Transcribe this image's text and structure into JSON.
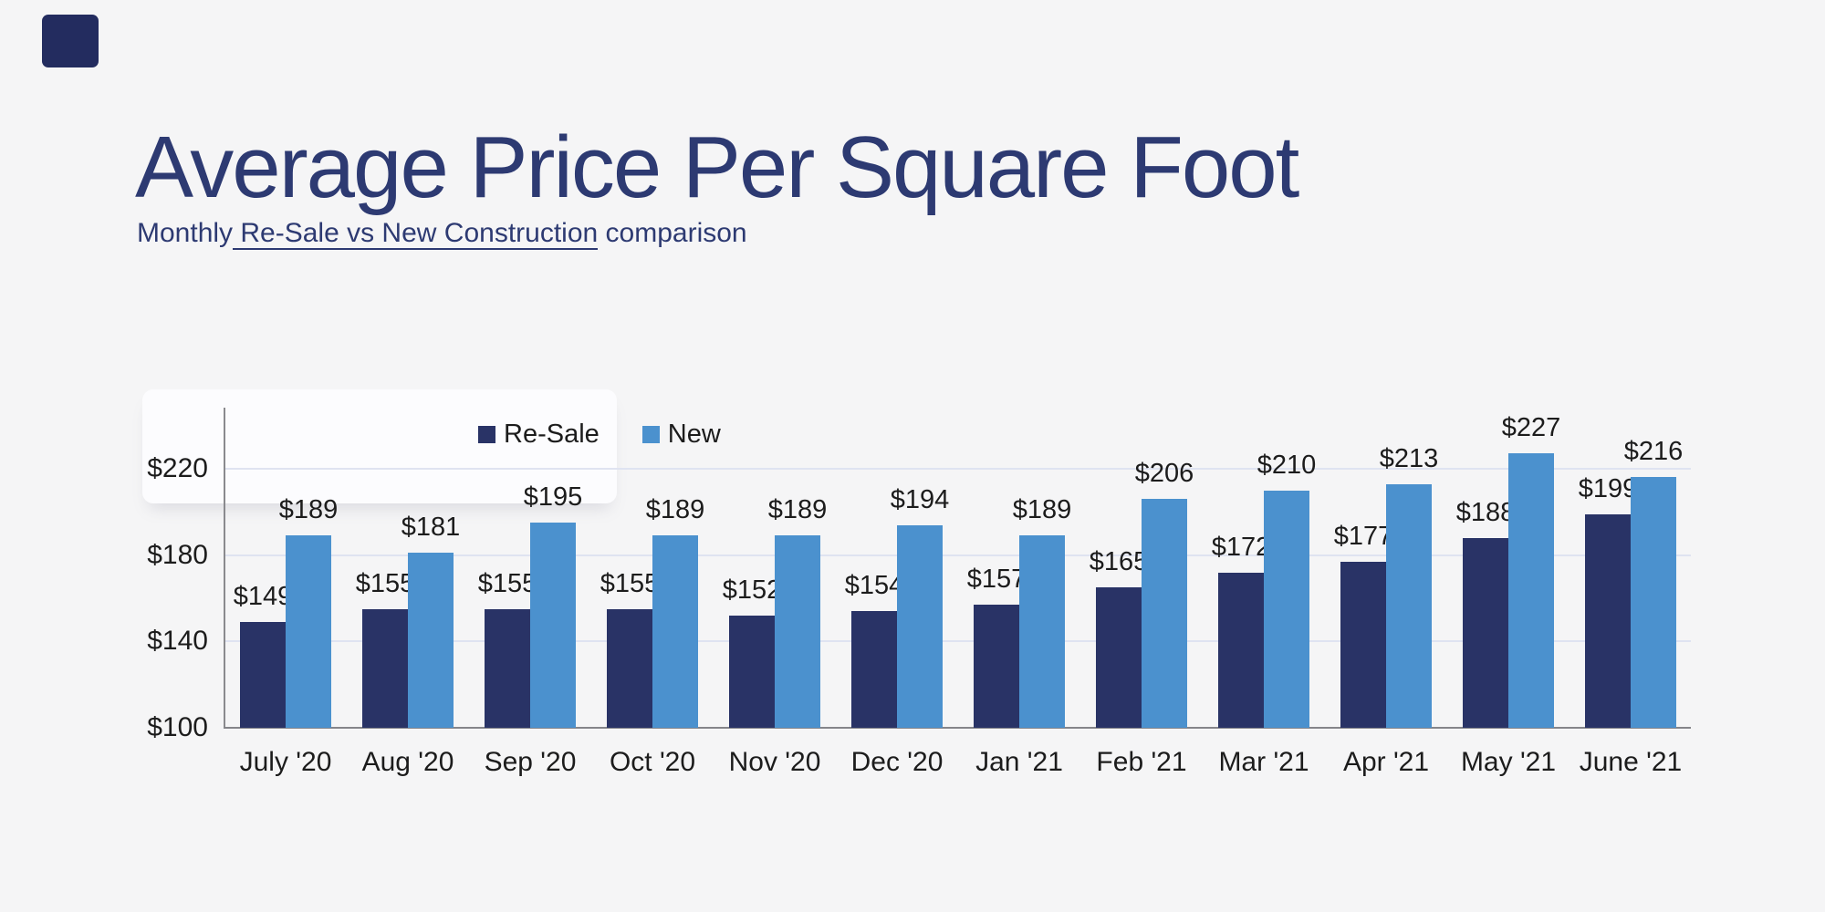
{
  "page": {
    "background": "#f5f5f6",
    "logo_color": "#232c5f",
    "heading_color": "#2d3a72",
    "label_text_color": "#1c1c1c",
    "gridline_color": "#dfe3f1",
    "axis_line_color": "#8a8a8e"
  },
  "header": {
    "title": "Average Price Per Square Foot",
    "subtitle_prefix": "Monthly",
    "subtitle_underlined": " Re-Sale vs New Construction",
    "subtitle_suffix": " comparison"
  },
  "chart_data": {
    "type": "bar",
    "title": "Average Price Per Square Foot",
    "subtitle": "Monthly Re-Sale vs New Construction comparison",
    "categories": [
      "July '20",
      "Aug '20",
      "Sep '20",
      "Oct '20",
      "Nov '20",
      "Dec '20",
      "Jan '21",
      "Feb '21",
      "Mar '21",
      "Apr '21",
      "May '21",
      "June '21"
    ],
    "series": [
      {
        "name": "Re-Sale",
        "color": "#293366",
        "values": [
          149,
          155,
          155,
          155,
          152,
          154,
          157,
          165,
          172,
          177,
          188,
          199
        ]
      },
      {
        "name": "New",
        "color": "#4B91CE",
        "values": [
          189,
          181,
          195,
          189,
          189,
          194,
          189,
          206,
          210,
          213,
          227,
          216
        ]
      }
    ],
    "value_prefix": "$",
    "xlabel": "",
    "ylabel": "",
    "y_ticks": [
      {
        "label": "$220",
        "value": 220
      },
      {
        "label": "$180",
        "value": 180
      },
      {
        "label": "$140",
        "value": 140
      },
      {
        "label": "$100",
        "value": 100
      }
    ],
    "ylim": [
      100,
      248
    ],
    "grid": true,
    "legend_position": "inside-top-left"
  }
}
